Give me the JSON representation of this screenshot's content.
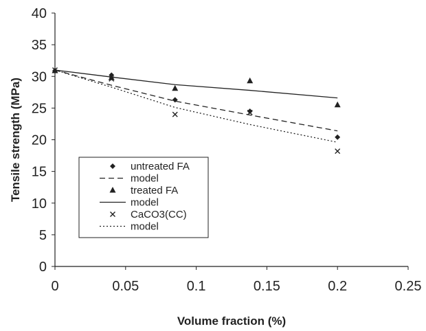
{
  "chart_data": {
    "type": "scatter",
    "xlabel": "Volume fraction (%)",
    "ylabel": "Tensile strength (MPa)",
    "xlim": [
      0,
      0.25
    ],
    "ylim": [
      0,
      40
    ],
    "x_ticks": [
      0,
      0.05,
      0.1,
      0.15,
      0.2,
      0.25
    ],
    "x_tick_labels": [
      "0",
      "0.05",
      "0.1",
      "0.15",
      "0.2",
      "0.25"
    ],
    "y_ticks": [
      0,
      5,
      10,
      15,
      20,
      25,
      30,
      35,
      40
    ],
    "y_tick_labels": [
      "0",
      "5",
      "10",
      "15",
      "20",
      "25",
      "30",
      "35",
      "40"
    ],
    "grid": false,
    "legend_position": "bottom-left",
    "series": [
      {
        "name": "untreated FA",
        "kind": "points",
        "marker": "diamond",
        "x": [
          0,
          0.04,
          0.085,
          0.138,
          0.2
        ],
        "y": [
          30.9,
          30.2,
          26.3,
          24.5,
          20.4
        ]
      },
      {
        "name": "model",
        "kind": "line",
        "dash": "dashed",
        "x": [
          0,
          0.04,
          0.085,
          0.138,
          0.2
        ],
        "y": [
          31.0,
          28.6,
          26.1,
          23.9,
          21.4
        ]
      },
      {
        "name": "treated FA",
        "kind": "points",
        "marker": "triangle",
        "x": [
          0,
          0.04,
          0.085,
          0.138,
          0.2
        ],
        "y": [
          30.9,
          29.8,
          28.1,
          29.3,
          25.5
        ]
      },
      {
        "name": "model",
        "kind": "line",
        "dash": "solid",
        "x": [
          0,
          0.04,
          0.085,
          0.138,
          0.2
        ],
        "y": [
          31.0,
          29.9,
          28.7,
          27.8,
          26.6
        ]
      },
      {
        "name": "CaCO3(CC)",
        "kind": "points",
        "marker": "x",
        "x": [
          0,
          0.04,
          0.085,
          0.138,
          0.2
        ],
        "y": [
          31.0,
          29.6,
          24.0,
          24.3,
          18.2
        ]
      },
      {
        "name": "model",
        "kind": "line",
        "dash": "dotted",
        "x": [
          0,
          0.04,
          0.085,
          0.138,
          0.2
        ],
        "y": [
          31.0,
          28.3,
          25.1,
          22.4,
          19.6
        ]
      }
    ],
    "colors": {
      "ink": "#222222",
      "background": "#ffffff"
    }
  }
}
